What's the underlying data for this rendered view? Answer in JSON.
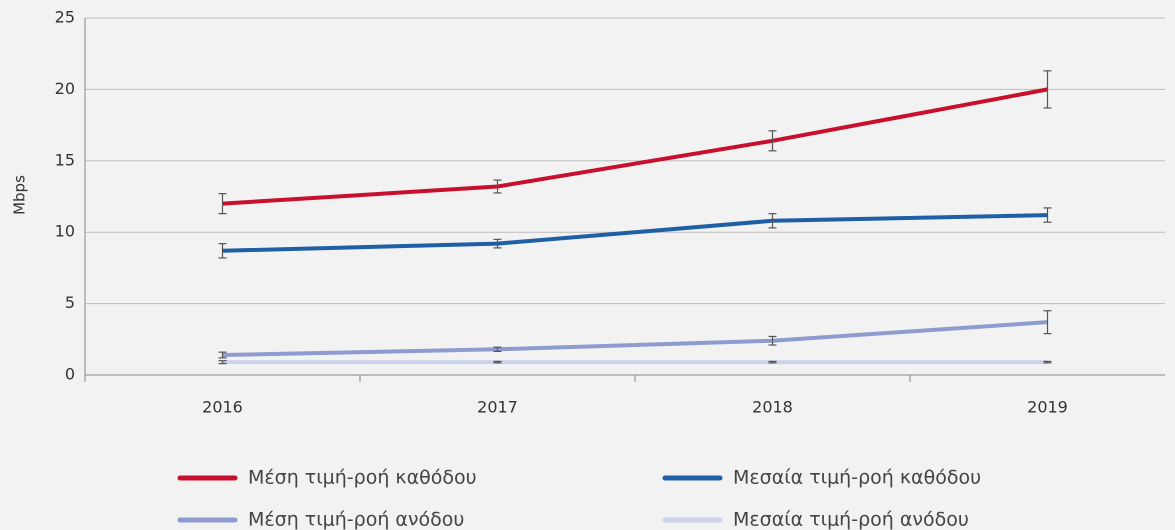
{
  "chart_data": {
    "type": "line",
    "ylabel": "Mbps",
    "categories": [
      "2016",
      "2017",
      "2018",
      "2019"
    ],
    "ylim": [
      0,
      25
    ],
    "yticks": [
      0,
      5,
      10,
      15,
      20,
      25
    ],
    "grid": true,
    "series": [
      {
        "name": "Μέση τιμή-ροή καθόδου",
        "color": "#c8102e",
        "values": [
          12.0,
          13.2,
          16.4,
          20.0
        ],
        "errors": [
          0.7,
          0.45,
          0.7,
          1.3
        ]
      },
      {
        "name": "Μεσαία τιμή-ροή καθόδου",
        "color": "#1f5fa6",
        "values": [
          8.7,
          9.2,
          10.8,
          11.2
        ],
        "errors": [
          0.5,
          0.3,
          0.5,
          0.5
        ]
      },
      {
        "name": "Μέση τιμή-ροή ανόδου",
        "color": "#8e9bd0",
        "values": [
          1.4,
          1.8,
          2.4,
          3.7
        ],
        "errors": [
          0.2,
          0.15,
          0.3,
          0.8
        ]
      },
      {
        "name": "Μεσαία τιμή-ροή ανόδου",
        "color": "#ccd2ea",
        "values": [
          0.9,
          0.9,
          0.9,
          0.9
        ],
        "errors": [
          0.1,
          0.05,
          0.05,
          0.05
        ]
      }
    ]
  }
}
